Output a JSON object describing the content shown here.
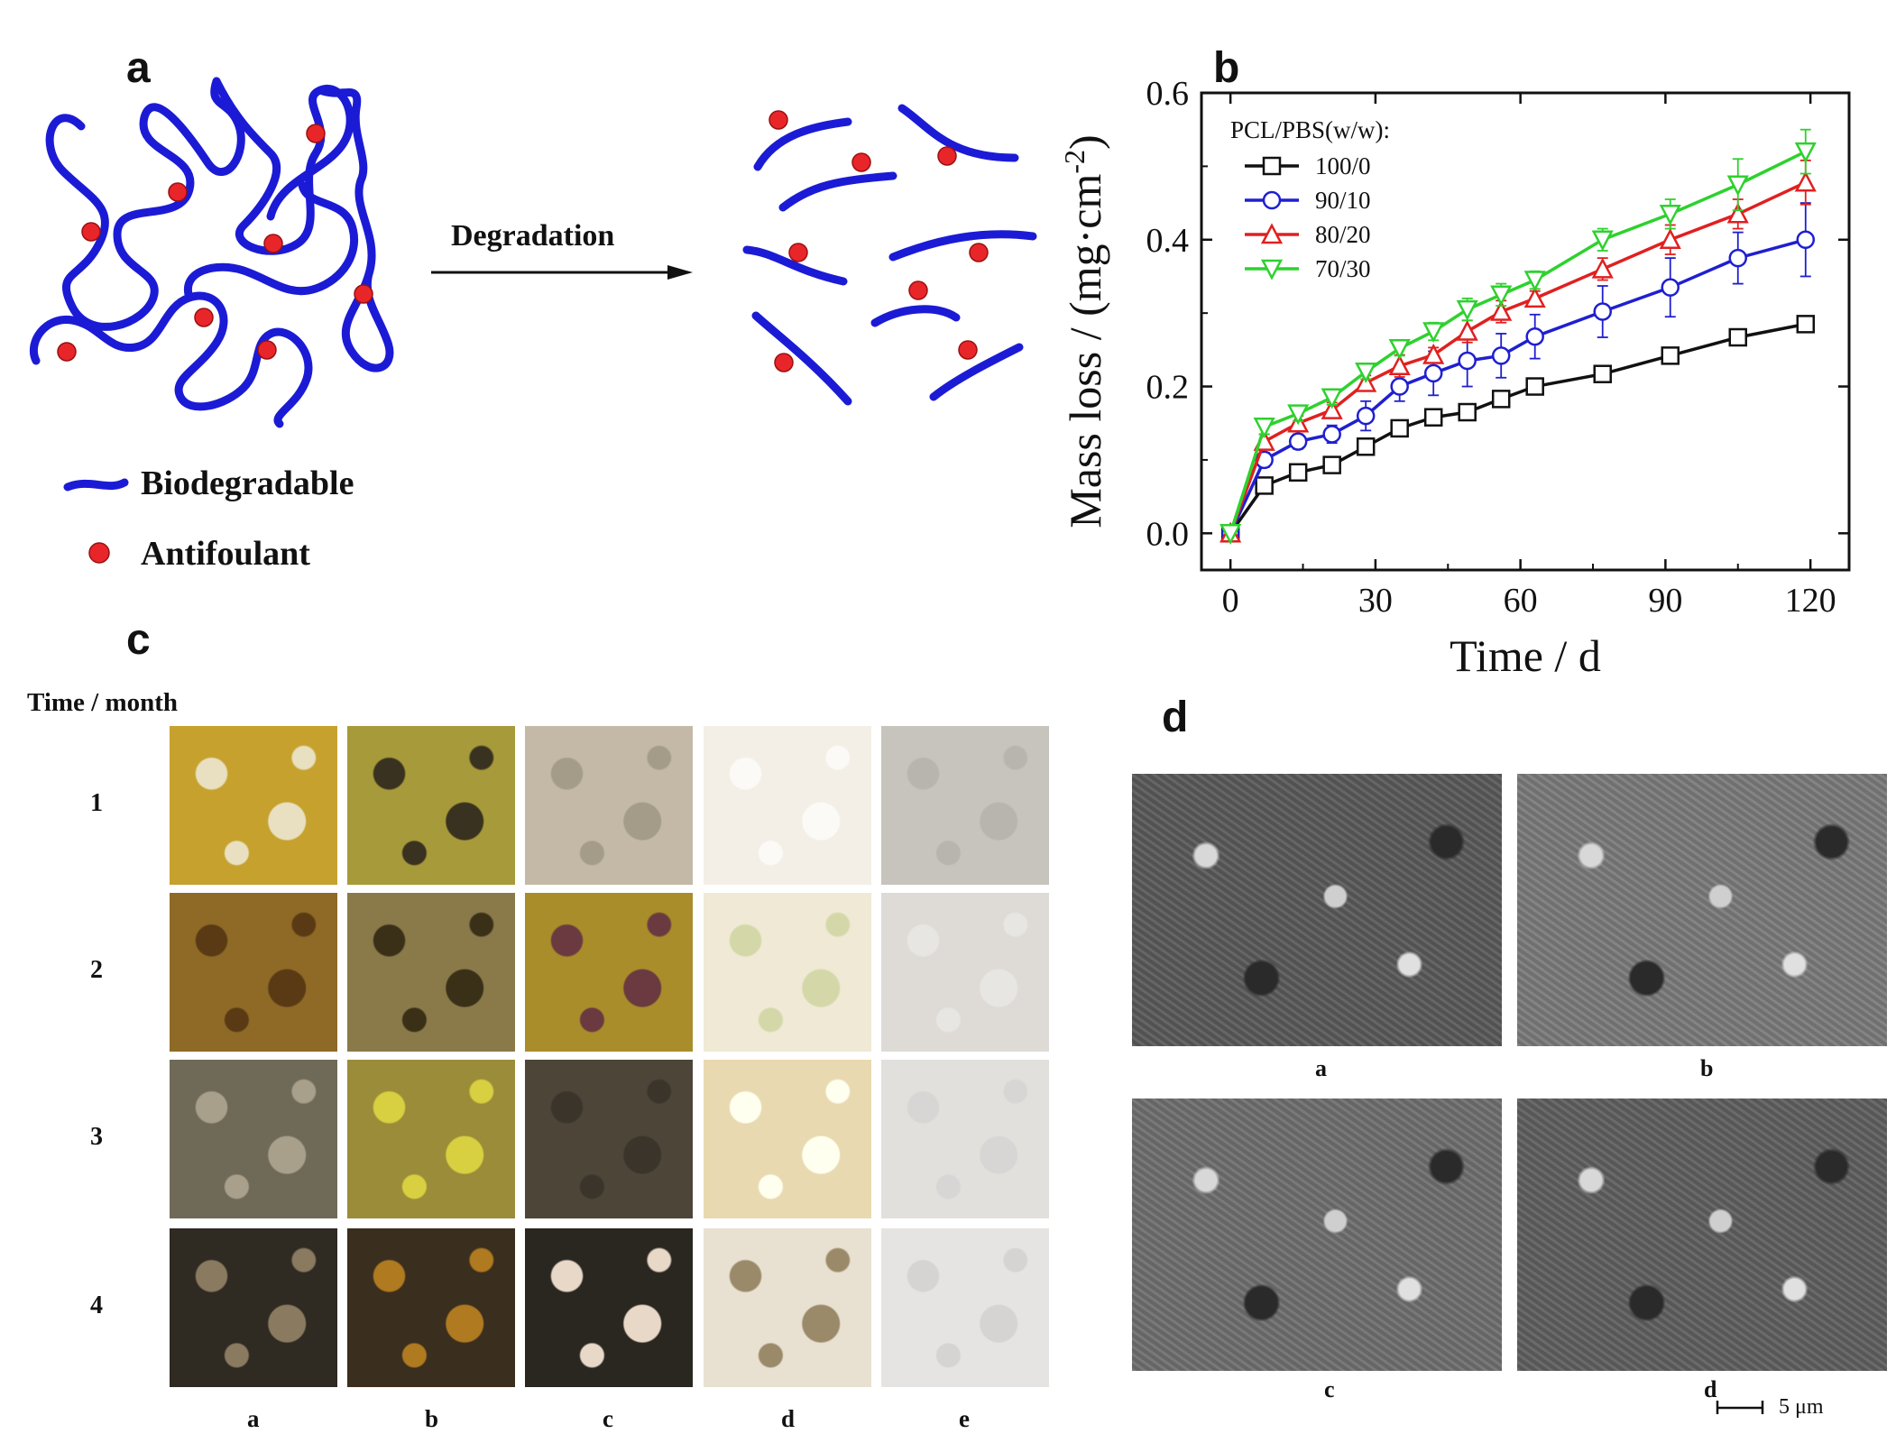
{
  "figure": {
    "panels": [
      "a",
      "b",
      "c",
      "d"
    ]
  },
  "panel_a": {
    "arrow_label": "Degradation",
    "legend": [
      {
        "label": "Biodegradable",
        "icon": "blue-chain-icon"
      },
      {
        "label": "Antifoulant",
        "icon": "red-dot-icon"
      }
    ],
    "colors": {
      "chain": "#1b1bd6",
      "dot": "#e8262a"
    }
  },
  "chart_data": {
    "type": "line",
    "xlabel": "Time / d",
    "ylabel": "Mass loss / (mg·cm",
    "ylabel_sup": "-2",
    "ylabel_close": ")",
    "xlim": [
      -6,
      128
    ],
    "ylim": [
      -0.05,
      0.6
    ],
    "xticks": [
      0,
      30,
      60,
      90,
      120
    ],
    "yticks": [
      0.0,
      0.2,
      0.4,
      0.6
    ],
    "ytick_labels": [
      "0.0",
      "0.2",
      "0.4",
      "0.6"
    ],
    "legend_title": "PCL/PBS(w/w):",
    "legend_position": "top-left",
    "x": [
      0,
      7,
      14,
      21,
      28,
      35,
      42,
      49,
      56,
      63,
      77,
      91,
      105,
      119
    ],
    "series": [
      {
        "name": "100/0",
        "color": "#111111",
        "marker": "square",
        "values": [
          0.0,
          0.065,
          0.083,
          0.093,
          0.118,
          0.143,
          0.158,
          0.165,
          0.183,
          0.2,
          0.217,
          0.242,
          0.267,
          0.285
        ],
        "errors": [
          0.0,
          0.008,
          0.008,
          0.008,
          0.01,
          0.008,
          0.01,
          0.01,
          0.008,
          0.006,
          0.01,
          0.01,
          0.01,
          0.01
        ]
      },
      {
        "name": "90/10",
        "color": "#1f1fd0",
        "marker": "circle",
        "values": [
          0.0,
          0.1,
          0.125,
          0.135,
          0.16,
          0.2,
          0.218,
          0.235,
          0.242,
          0.268,
          0.302,
          0.335,
          0.375,
          0.4
        ],
        "errors": [
          0.0,
          0.01,
          0.01,
          0.012,
          0.02,
          0.02,
          0.03,
          0.035,
          0.03,
          0.03,
          0.035,
          0.04,
          0.035,
          0.05
        ]
      },
      {
        "name": "80/20",
        "color": "#e02020",
        "marker": "triangle-up",
        "values": [
          0.0,
          0.125,
          0.15,
          0.168,
          0.205,
          0.228,
          0.243,
          0.275,
          0.302,
          0.32,
          0.36,
          0.4,
          0.435,
          0.478
        ],
        "errors": [
          0.0,
          0.01,
          0.01,
          0.01,
          0.01,
          0.015,
          0.01,
          0.015,
          0.015,
          0.01,
          0.015,
          0.02,
          0.02,
          0.03
        ]
      },
      {
        "name": "70/30",
        "color": "#2ed12e",
        "marker": "triangle-down",
        "values": [
          0.0,
          0.145,
          0.163,
          0.185,
          0.22,
          0.252,
          0.275,
          0.305,
          0.325,
          0.345,
          0.4,
          0.435,
          0.475,
          0.52
        ],
        "errors": [
          0.0,
          0.01,
          0.01,
          0.01,
          0.01,
          0.01,
          0.012,
          0.015,
          0.015,
          0.012,
          0.015,
          0.02,
          0.035,
          0.03
        ]
      }
    ]
  },
  "panel_c": {
    "header": "Time / month",
    "row_labels": [
      "1",
      "2",
      "3",
      "4"
    ],
    "col_labels": [
      "a",
      "b",
      "c",
      "d",
      "e"
    ]
  },
  "panel_d": {
    "labels": [
      "a",
      "b",
      "c",
      "d"
    ],
    "scale_bar": "5 μm"
  }
}
